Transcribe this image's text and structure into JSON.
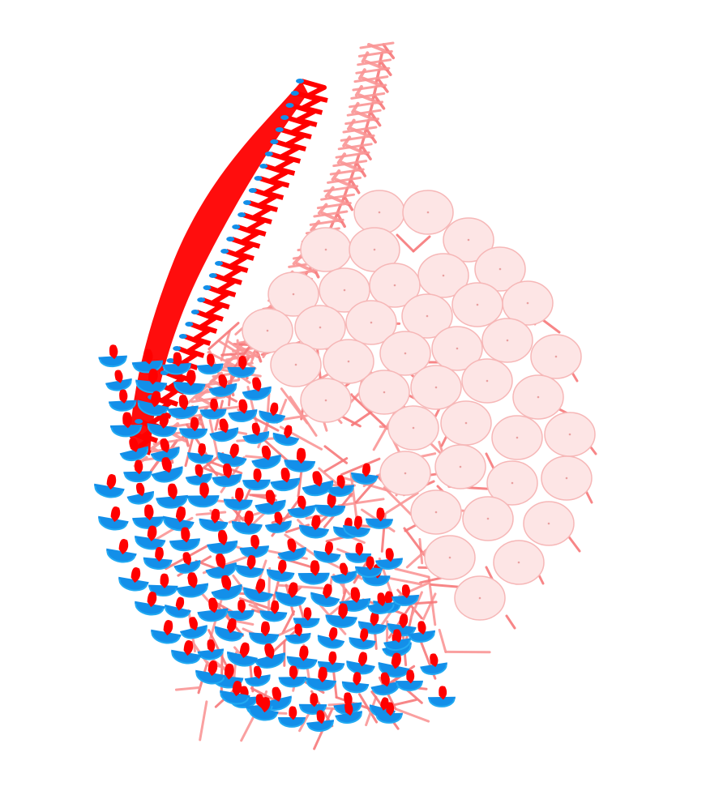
{
  "scene": {
    "background": "#ffffff",
    "colors": {
      "pink_disk_fill": "#fde5e5",
      "pink_disk_stroke": "#f6b7b7",
      "pink_strut": "#f7797b",
      "pink_strut_light": "#fa9696",
      "red_panel": "#ff0000",
      "blue_panel": "#138fe9",
      "blue_panel_light": "#22aaf2"
    }
  }
}
